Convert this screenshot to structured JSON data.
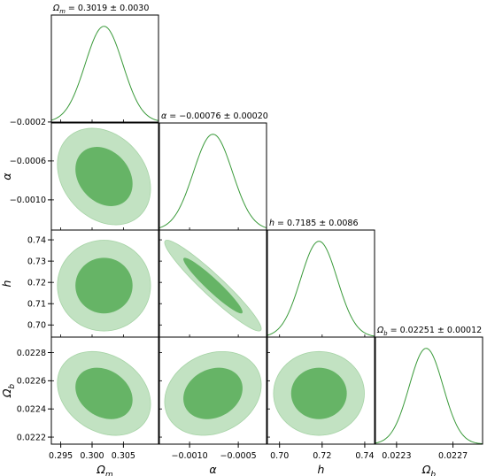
{
  "chart_data": {
    "type": "corner",
    "parameters": [
      {
        "key": "om",
        "symbol": "Ω",
        "sub": "m",
        "mean": 0.3019,
        "sigma": 0.003,
        "title": "= 0.3019 ± 0.0030",
        "ticks": [
          0.295,
          0.3,
          0.305
        ],
        "tick_labels": [
          "0.295",
          "0.300",
          "0.305"
        ],
        "range": [
          0.2935,
          0.3106
        ]
      },
      {
        "key": "alpha",
        "symbol": "α",
        "sub": "",
        "mean": -0.00076,
        "sigma": 0.0002,
        "title": "= −0.00076 ± 0.00020",
        "ticks": [
          -0.001,
          -0.0005
        ],
        "tick_labels": [
          "−0.0010",
          "−0.0005"
        ],
        "range": [
          -0.00131,
          -0.00021
        ],
        "y_ticks": [
          -0.0002,
          -0.0006,
          -0.001
        ],
        "y_tick_labels": [
          "−0.0002",
          "−0.0006",
          "−0.0010"
        ]
      },
      {
        "key": "h",
        "symbol": "h",
        "sub": "",
        "mean": 0.7185,
        "sigma": 0.0086,
        "title": "= 0.7185 ± 0.0086",
        "ticks": [
          0.7,
          0.72,
          0.74
        ],
        "tick_labels": [
          "0.70",
          "0.72",
          "0.74"
        ],
        "range": [
          0.6943,
          0.7446
        ],
        "y_ticks": [
          0.74,
          0.73,
          0.72,
          0.71,
          0.7
        ],
        "y_tick_labels": [
          "0.74",
          "0.73",
          "0.72",
          "0.71",
          "0.70"
        ]
      },
      {
        "key": "ob",
        "symbol": "Ω",
        "sub": "b",
        "mean": 0.02251,
        "sigma": 0.00012,
        "title": "= 0.02251 ± 0.00012",
        "ticks": [
          0.0223,
          0.0227
        ],
        "tick_labels": [
          "0.0223",
          "0.0227"
        ],
        "range": [
          0.02215,
          0.02291
        ],
        "y_ticks": [
          0.0228,
          0.0226,
          0.0224,
          0.0222
        ],
        "y_tick_labels": [
          "0.0228",
          "0.0226",
          "0.0224",
          "0.0222"
        ]
      }
    ],
    "correlations": {
      "om-alpha": -0.25,
      "om-h": 0.0,
      "alpha-h": -0.95,
      "om-ob": -0.25,
      "alpha-ob": 0.2,
      "h-ob": 0.0
    },
    "contour_levels": [
      "68%",
      "95%"
    ],
    "colors": {
      "line": "#3a9a3a",
      "inner_fill": "#66b466",
      "outer_fill": "#c2e2c2",
      "outer_edge": "#a6d3a6"
    }
  }
}
